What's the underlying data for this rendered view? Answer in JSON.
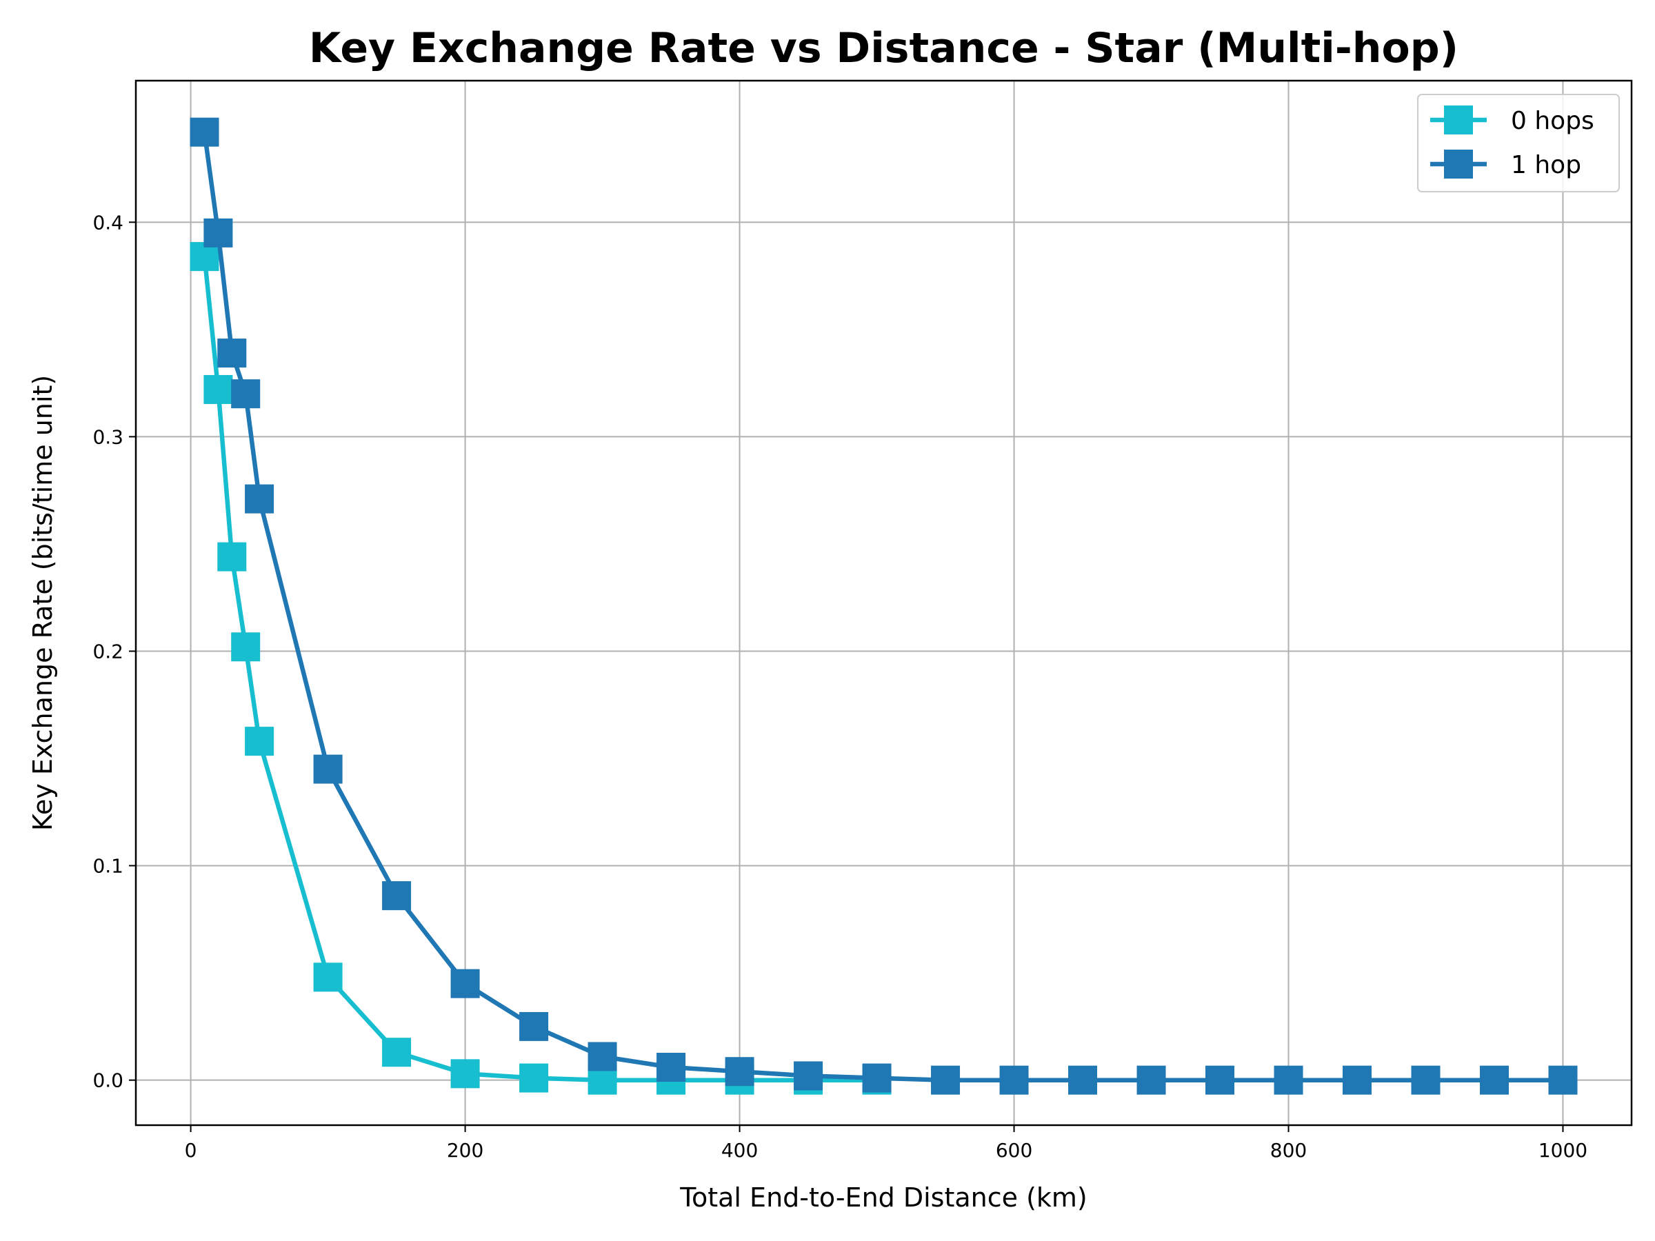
{
  "chart_data": {
    "type": "line",
    "title": "Key Exchange Rate vs Distance - Star (Multi-hop)",
    "xlabel": "Total End-to-End Distance (km)",
    "ylabel": "Key Exchange Rate (bits/time unit)",
    "xlim": [
      -40,
      1050
    ],
    "ylim": [
      -0.021,
      0.466
    ],
    "xticks": [
      0,
      200,
      400,
      600,
      800,
      1000
    ],
    "xtick_labels": [
      "0",
      "200",
      "400",
      "600",
      "800",
      "1000"
    ],
    "yticks": [
      0.0,
      0.1,
      0.2,
      0.3,
      0.4
    ],
    "ytick_labels": [
      "0.0",
      "0.1",
      "0.2",
      "0.3",
      "0.4"
    ],
    "grid": true,
    "legend_position": "top-right",
    "series": [
      {
        "name": "0 hops",
        "color": "#17becf",
        "marker": "square",
        "x": [
          10,
          20,
          30,
          40,
          50,
          100,
          150,
          200,
          250,
          300,
          350,
          400,
          450,
          500
        ],
        "y": [
          0.384,
          0.322,
          0.244,
          0.202,
          0.158,
          0.048,
          0.013,
          0.003,
          0.001,
          0.0,
          0.0,
          0.0,
          0.0,
          0.0
        ]
      },
      {
        "name": "1 hop",
        "color": "#1f77b4",
        "marker": "square",
        "x": [
          10,
          20,
          30,
          40,
          50,
          100,
          150,
          200,
          250,
          300,
          350,
          400,
          450,
          500,
          550,
          600,
          650,
          700,
          750,
          800,
          850,
          900,
          950,
          1000
        ],
        "y": [
          0.442,
          0.395,
          0.339,
          0.32,
          0.271,
          0.145,
          0.086,
          0.045,
          0.025,
          0.011,
          0.006,
          0.004,
          0.002,
          0.001,
          0.0,
          0.0,
          0.0,
          0.0,
          0.0,
          0.0,
          0.0,
          0.0,
          0.0,
          0.0
        ]
      }
    ]
  }
}
